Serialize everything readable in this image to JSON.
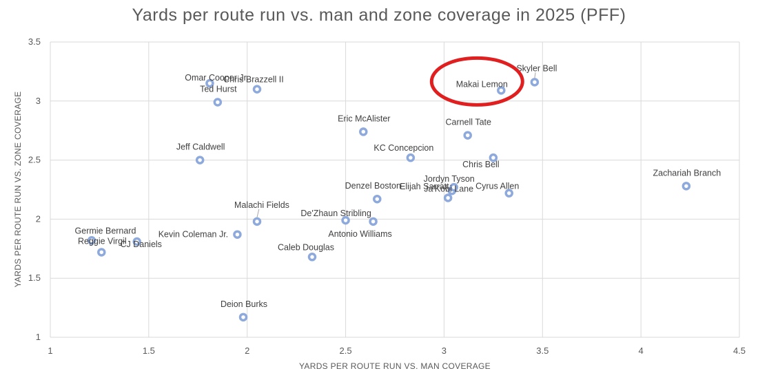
{
  "chart_data": {
    "type": "scatter",
    "title": "Yards per route run vs. man and zone coverage in 2025 (PFF)",
    "xlabel": "YARDS PER ROUTE RUN VS. MAN COVERAGE",
    "ylabel": "YARDS PER ROUTE RUN VS. ZONE COVERAGE",
    "xlim": [
      1,
      4.5
    ],
    "ylim": [
      1,
      3.5
    ],
    "xticks": [
      1,
      1.5,
      2,
      2.5,
      3,
      3.5,
      4,
      4.5
    ],
    "yticks": [
      1,
      1.5,
      2,
      2.5,
      3,
      3.5
    ],
    "xtick_labels": [
      "1",
      "1.5",
      "2",
      "2.5",
      "3",
      "3.5",
      "4",
      "4.5"
    ],
    "ytick_labels": [
      "1",
      "1.5",
      "2",
      "2.5",
      "3",
      "3.5"
    ],
    "grid": true,
    "marker_color": "#8EA9DB",
    "highlight_color": "#E02020",
    "highlight": "Makai Lemon",
    "points": [
      {
        "name": "Omar Cooper Jr.",
        "x": 1.81,
        "y": 3.15
      },
      {
        "name": "Chris Brazzell II",
        "x": 2.05,
        "y": 3.1
      },
      {
        "name": "Ted Hurst",
        "x": 1.85,
        "y": 2.99
      },
      {
        "name": "Jeff Caldwell",
        "x": 1.76,
        "y": 2.5
      },
      {
        "name": "Skyler Bell",
        "x": 3.46,
        "y": 3.16
      },
      {
        "name": "Makai Lemon",
        "x": 3.29,
        "y": 3.09
      },
      {
        "name": "Eric McAlister",
        "x": 2.59,
        "y": 2.74
      },
      {
        "name": "Carnell Tate",
        "x": 3.12,
        "y": 2.71
      },
      {
        "name": "KC Concepcion",
        "x": 2.83,
        "y": 2.52
      },
      {
        "name": "Chris Bell",
        "x": 3.25,
        "y": 2.52
      },
      {
        "name": "Zachariah Branch",
        "x": 4.23,
        "y": 2.28
      },
      {
        "name": "Denzel Boston",
        "x": 2.66,
        "y": 2.17
      },
      {
        "name": "Elijah Sarratt",
        "x": 3.04,
        "y": 2.24
      },
      {
        "name": "Jordyn Tyson",
        "x": 3.05,
        "y": 2.27
      },
      {
        "name": "Ja'Kobi Lane",
        "x": 3.02,
        "y": 2.18
      },
      {
        "name": "Cyrus Allen",
        "x": 3.33,
        "y": 2.22
      },
      {
        "name": "Malachi Fields",
        "x": 2.05,
        "y": 1.98
      },
      {
        "name": "De'Zhaun Stribling",
        "x": 2.5,
        "y": 1.99
      },
      {
        "name": "Antonio Williams",
        "x": 2.64,
        "y": 1.98
      },
      {
        "name": "Kevin Coleman Jr.",
        "x": 1.95,
        "y": 1.87
      },
      {
        "name": "Germie Bernard",
        "x": 1.21,
        "y": 1.82
      },
      {
        "name": "Reggie Virgil",
        "x": 1.26,
        "y": 1.72
      },
      {
        "name": "CJ Daniels",
        "x": 1.44,
        "y": 1.81
      },
      {
        "name": "Caleb Douglas",
        "x": 2.33,
        "y": 1.68
      },
      {
        "name": "Deion Burks",
        "x": 1.98,
        "y": 1.17
      }
    ]
  }
}
